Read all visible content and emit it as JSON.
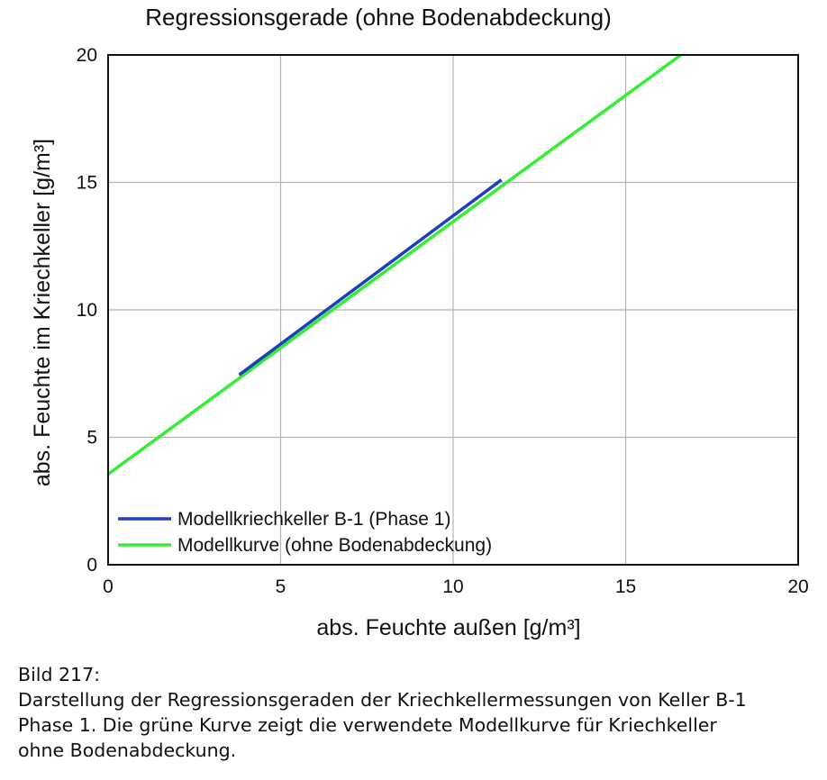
{
  "chart_data": {
    "type": "line",
    "title": "Regressionsgerade (ohne Bodenabdeckung)",
    "xlabel": "abs. Feuchte außen [g/m³]",
    "ylabel": "abs. Feuchte im Kriechkeller [g/m³]",
    "xlim": [
      0,
      20
    ],
    "ylim": [
      0,
      20
    ],
    "xticks": [
      "0",
      "5",
      "10",
      "15",
      "20"
    ],
    "yticks": [
      "0",
      "5",
      "10",
      "15",
      "20"
    ],
    "grid": true,
    "legend_position": "bottom-left",
    "series": [
      {
        "name": "Modellkriechkeller B-1 (Phase 1)",
        "color": "#1f3fbf",
        "x": [
          3.8,
          11.4
        ],
        "y": [
          7.45,
          15.1
        ]
      },
      {
        "name": "Modellkurve (ohne Bodenabdeckung)",
        "color": "#33ee33",
        "x": [
          0,
          16.6
        ],
        "y": [
          3.55,
          20
        ]
      }
    ]
  },
  "caption": {
    "line1": "Bild 217:",
    "line2": "Darstellung der Regressionsgeraden der Kriechkellermessungen von Keller B-1",
    "line3": "Phase 1. Die grüne Kurve zeigt die verwendete Modellkurve für Kriechkeller",
    "line4": "ohne Bodenabdeckung."
  }
}
